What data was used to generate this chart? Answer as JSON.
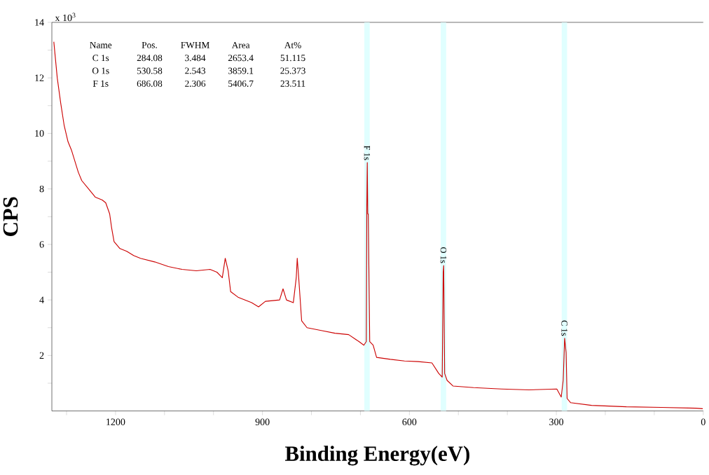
{
  "chart_data": {
    "type": "line",
    "xlabel": "Binding Energy(eV)",
    "ylabel": "CPS",
    "x": [
      1326,
      1319,
      1312,
      1305,
      1297,
      1290,
      1283,
      1276,
      1269,
      1255,
      1241,
      1227,
      1220,
      1212,
      1208,
      1203,
      1191,
      1177,
      1163,
      1149,
      1120,
      1092,
      1064,
      1035,
      1007,
      993,
      982,
      976,
      970,
      965,
      950,
      922,
      908,
      894,
      865,
      858,
      851,
      837,
      831,
      829,
      826,
      820,
      809,
      780,
      752,
      724,
      703,
      693,
      688,
      687,
      686,
      685,
      684,
      681,
      674,
      667,
      639,
      610,
      582,
      554,
      540,
      533,
      531,
      530,
      528,
      523,
      511,
      469,
      412,
      356,
      299,
      290,
      286,
      283,
      280,
      278,
      271,
      228,
      157,
      86,
      16,
      1
    ],
    "series": [
      {
        "color": "#cc0000",
        "values": [
          13.3,
          12.0,
          11.1,
          10.3,
          9.7,
          9.4,
          9.0,
          8.6,
          8.3,
          8.0,
          7.7,
          7.6,
          7.5,
          7.1,
          6.6,
          6.1,
          5.85,
          5.75,
          5.6,
          5.5,
          5.37,
          5.2,
          5.1,
          5.05,
          5.1,
          5.0,
          4.8,
          5.5,
          5.05,
          4.3,
          4.1,
          3.9,
          3.75,
          3.95,
          4.0,
          4.4,
          4.0,
          3.9,
          4.8,
          5.5,
          4.8,
          3.25,
          3.0,
          2.9,
          2.8,
          2.75,
          2.5,
          2.37,
          2.5,
          7.3,
          8.95,
          7.1,
          7.1,
          2.5,
          2.37,
          1.93,
          1.86,
          1.8,
          1.78,
          1.73,
          1.35,
          1.22,
          5.0,
          5.24,
          1.35,
          1.1,
          0.9,
          0.84,
          0.79,
          0.76,
          0.79,
          0.5,
          1.1,
          2.62,
          2.1,
          0.45,
          0.3,
          0.2,
          0.15,
          0.13,
          0.1,
          0.08
        ]
      }
    ],
    "xlim": [
      1330,
      0
    ],
    "ylim": [
      0,
      14
    ],
    "xticks": [
      {
        "value": 1300,
        "label": null
      },
      1200,
      {
        "value": 1100,
        "label": null
      },
      {
        "value": 1000,
        "label": null
      },
      900,
      {
        "value": 800,
        "label": null
      },
      {
        "value": 700,
        "label": null
      },
      600,
      {
        "value": 500,
        "label": null
      },
      {
        "value": 400,
        "label": null
      },
      300,
      {
        "value": 200,
        "label": null
      },
      {
        "value": 100,
        "label": null
      },
      0
    ],
    "yticks": [
      {
        "value": 1,
        "label": null
      },
      2,
      {
        "value": 3,
        "label": null
      },
      4,
      {
        "value": 5,
        "label": null
      },
      6,
      {
        "value": 7,
        "label": null
      },
      8,
      {
        "value": 9,
        "label": null
      },
      10,
      {
        "value": 11,
        "label": null
      },
      12,
      {
        "value": 13,
        "label": null
      },
      14
    ],
    "bands": [
      {
        "axis": "x",
        "from": 692,
        "to": 681,
        "label": "F 1s",
        "color": "#e0ffff"
      },
      {
        "axis": "x",
        "from": 536,
        "to": 525,
        "label": "O 1s",
        "color": "#e0ffff"
      },
      {
        "axis": "x",
        "from": 289,
        "to": 278,
        "label": "C 1s",
        "color": "#e0ffff"
      }
    ],
    "annotations": [
      "x 10$^{3}$",
      "Name",
      "Pos.",
      "FWHM",
      "Area",
      "At%",
      "C 1s",
      "284.08",
      "3.484",
      "2653.4",
      "51.115",
      "O 1s",
      "530.58",
      "2.543",
      "3859.1",
      "25.373",
      "F 1s",
      "686.08",
      "2.306",
      "5406.7",
      "23.511"
    ],
    "grid": false,
    "marker": "none",
    "line_style": "solid"
  }
}
